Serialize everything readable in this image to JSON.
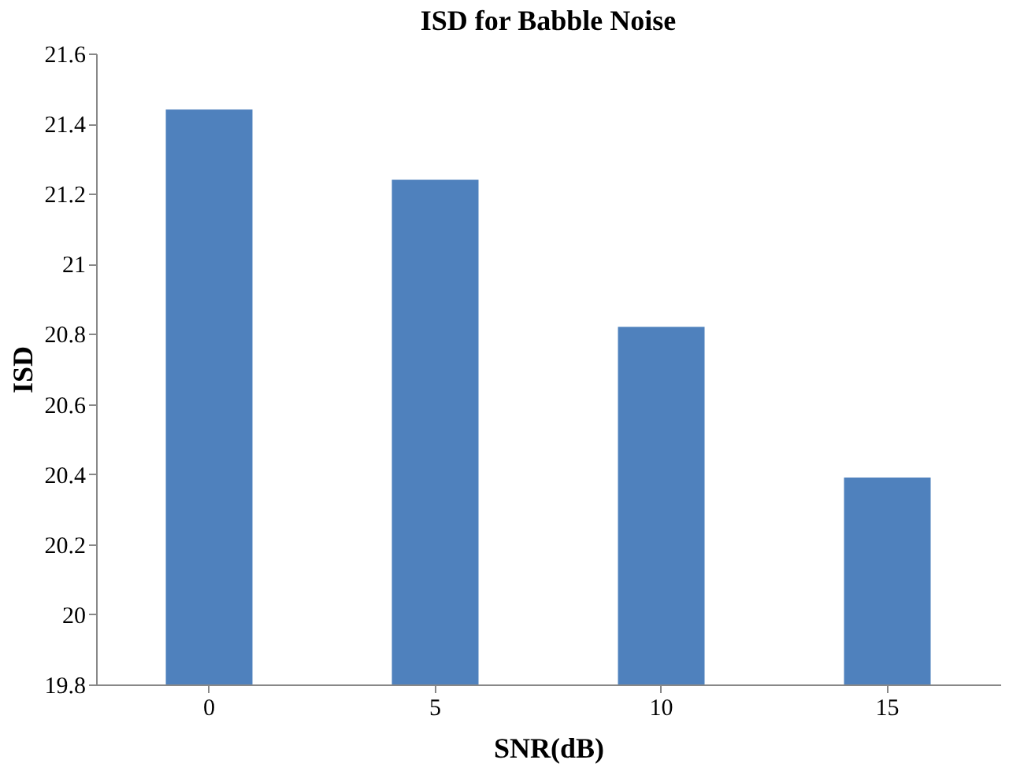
{
  "chart_data": {
    "type": "bar",
    "title": "ISD for Babble Noise",
    "xlabel": "SNR(dB)",
    "ylabel": "ISD",
    "categories": [
      "0",
      "5",
      "10",
      "15"
    ],
    "values": [
      21.44,
      21.24,
      20.82,
      20.39
    ],
    "color": "#4f81bd",
    "ylim": [
      19.8,
      21.6
    ],
    "yticks": [
      19.8,
      20,
      20.2,
      20.4,
      20.6,
      20.8,
      21,
      21.2,
      21.4,
      21.6
    ],
    "grid": false
  }
}
